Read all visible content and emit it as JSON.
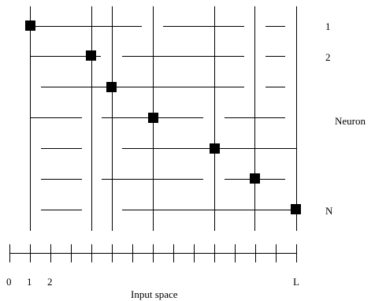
{
  "diagram": {
    "row_labels": {
      "first": "1",
      "second": "2",
      "middle": "Neuron",
      "last": "N"
    },
    "axis": {
      "tick_labels": [
        "0",
        "1",
        "2",
        "L"
      ],
      "title": "Input space"
    },
    "neurons": [
      {
        "row": 1,
        "column": 1
      },
      {
        "row": 2,
        "column": 4
      },
      {
        "row": 3,
        "column": 5
      },
      {
        "row": 4,
        "column": 7
      },
      {
        "row": 5,
        "column": 10
      },
      {
        "row": 6,
        "column": 12
      },
      {
        "row": 7,
        "column": 14
      }
    ],
    "axis_columns": 14,
    "colors": {
      "line": "#000000",
      "marker": "#000000",
      "background": "#ffffff"
    }
  }
}
